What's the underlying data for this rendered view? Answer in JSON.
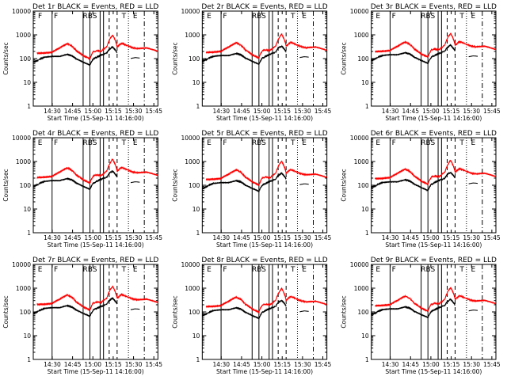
{
  "figure": {
    "type": "3x3 grid of detector light curves",
    "colors": {
      "events": "#000000",
      "lld": "#ff0000",
      "background": "#ffffff"
    }
  },
  "chart_data": [
    {
      "type": "line",
      "title": "Det 1r BLACK = Events, RED = LLD",
      "xlabel": "Start Time (15-Sep-11 14:16:00)",
      "ylabel": "Counts/sec",
      "y_scale": "log",
      "ylim": [
        1,
        10000
      ],
      "xlim": [
        14.2667,
        14.8
      ],
      "x_tick_labels": [
        "14:30",
        "14:45",
        "15:00",
        "15:15",
        "15:30",
        "15:45"
      ],
      "y_tick_labels": [
        "1",
        "10",
        "100",
        "1000",
        "10000"
      ],
      "marker_labels": [
        "F",
        "F",
        "RBS",
        "T",
        "E"
      ],
      "series": [
        {
          "name": "LLD",
          "color": "#ff0000"
        },
        {
          "name": "Events",
          "color": "#000000"
        }
      ]
    },
    {
      "type": "line",
      "title": "Det 2r BLACK = Events, RED = LLD",
      "xlabel": "Start Time (15-Sep-11 14:16:00)",
      "ylabel": "Counts/sec",
      "y_scale": "log",
      "ylim": [
        1,
        10000
      ],
      "xlim": [
        14.2667,
        14.8
      ],
      "x_tick_labels": [
        "14:30",
        "14:45",
        "15:00",
        "15:15",
        "15:30",
        "15:45"
      ],
      "y_tick_labels": [
        "1",
        "10",
        "100",
        "1000",
        "10000"
      ],
      "marker_labels": [
        "E",
        "F",
        "RBS",
        "T",
        "E"
      ],
      "series": [
        {
          "name": "LLD",
          "color": "#ff0000"
        },
        {
          "name": "Events",
          "color": "#000000"
        }
      ]
    },
    {
      "type": "line",
      "title": "Det 3r BLACK = Events, RED = LLD",
      "xlabel": "Start Time (15-Sep-11 14:16:00)",
      "ylabel": "Counts/sec",
      "y_scale": "log",
      "ylim": [
        1,
        10000
      ],
      "xlim": [
        14.2667,
        14.8
      ],
      "x_tick_labels": [
        "14:30",
        "14:45",
        "15:00",
        "15:15",
        "15:30",
        "15:45"
      ],
      "y_tick_labels": [
        "1",
        "10",
        "100",
        "1000",
        "10000"
      ],
      "marker_labels": [
        "E",
        "F",
        "RBS",
        "T",
        "E"
      ],
      "series": [
        {
          "name": "LLD",
          "color": "#ff0000"
        },
        {
          "name": "Events",
          "color": "#000000"
        }
      ]
    },
    {
      "type": "line",
      "title": "Det 4r BLACK = Events, RED = LLD",
      "xlabel": "Start Time (15-Sep-11 14:16:00)",
      "ylabel": "Counts/sec",
      "y_scale": "log",
      "ylim": [
        1,
        10000
      ],
      "xlim": [
        14.2667,
        14.8
      ],
      "x_tick_labels": [
        "14:30",
        "14:45",
        "15:00",
        "15:15",
        "15:30",
        "15:45"
      ],
      "y_tick_labels": [
        "1",
        "10",
        "100",
        "1000",
        "10000"
      ],
      "marker_labels": [
        "E",
        "F",
        "RBS",
        "T",
        "E"
      ],
      "series": [
        {
          "name": "LLD",
          "color": "#ff0000"
        },
        {
          "name": "Events",
          "color": "#000000"
        }
      ]
    },
    {
      "type": "line",
      "title": "Det 5r BLACK = Events, RED = LLD",
      "xlabel": "Start Time (15-Sep-11 14:16:00)",
      "ylabel": "Counts/sec",
      "y_scale": "log",
      "ylim": [
        1,
        10000
      ],
      "xlim": [
        14.2667,
        14.8
      ],
      "x_tick_labels": [
        "14:30",
        "14:45",
        "15:00",
        "15:15",
        "15:30",
        "15:45"
      ],
      "y_tick_labels": [
        "1",
        "10",
        "100",
        "1000",
        "10000"
      ],
      "marker_labels": [
        "E",
        "F",
        "RBS",
        "T",
        "E"
      ],
      "series": [
        {
          "name": "LLD",
          "color": "#ff0000"
        },
        {
          "name": "Events",
          "color": "#000000"
        }
      ]
    },
    {
      "type": "line",
      "title": "Det 6r BLACK = Events, RED = LLD",
      "xlabel": "Start Time (15-Sep-11 14:16:00)",
      "ylabel": "Counts/sec",
      "y_scale": "log",
      "ylim": [
        1,
        10000
      ],
      "xlim": [
        14.2667,
        14.8
      ],
      "x_tick_labels": [
        "14:30",
        "14:45",
        "15:00",
        "15:15",
        "15:30",
        "15:45"
      ],
      "y_tick_labels": [
        "1",
        "10",
        "100",
        "1000",
        "10000"
      ],
      "marker_labels": [
        "E",
        "F",
        "RBS",
        "T",
        "E"
      ],
      "series": [
        {
          "name": "LLD",
          "color": "#ff0000"
        },
        {
          "name": "Events",
          "color": "#000000"
        }
      ]
    },
    {
      "type": "line",
      "title": "Det 7r BLACK = Events, RED = LLD",
      "xlabel": "Start Time (15-Sep-11 14:16:00)",
      "ylabel": "Counts/sec",
      "y_scale": "log",
      "ylim": [
        1,
        10000
      ],
      "xlim": [
        14.2667,
        14.8
      ],
      "x_tick_labels": [
        "14:30",
        "14:45",
        "15:00",
        "15:15",
        "15:30",
        "15:45"
      ],
      "y_tick_labels": [
        "1",
        "10",
        "100",
        "1000",
        "10000"
      ],
      "marker_labels": [
        "E",
        "F",
        "RBS",
        "T",
        "E"
      ],
      "series": [
        {
          "name": "LLD",
          "color": "#ff0000"
        },
        {
          "name": "Events",
          "color": "#000000"
        }
      ]
    },
    {
      "type": "line",
      "title": "Det 8r BLACK = Events, RED = LLD",
      "xlabel": "Start Time (15-Sep-11 14:16:00)",
      "ylabel": "Counts/sec",
      "y_scale": "log",
      "ylim": [
        1,
        10000
      ],
      "xlim": [
        14.2667,
        14.8
      ],
      "x_tick_labels": [
        "14:30",
        "14:45",
        "15:00",
        "15:15",
        "15:30",
        "15:45"
      ],
      "y_tick_labels": [
        "1",
        "10",
        "100",
        "1000",
        "10000"
      ],
      "marker_labels": [
        "E",
        "F",
        "RBS",
        "T",
        "E"
      ],
      "series": [
        {
          "name": "LLD",
          "color": "#ff0000"
        },
        {
          "name": "Events",
          "color": "#000000"
        }
      ]
    },
    {
      "type": "line",
      "title": "Det 9r BLACK = Events, RED = LLD",
      "xlabel": "Start Time (15-Sep-11 14:16:00)",
      "ylabel": "Counts/sec",
      "y_scale": "log",
      "ylim": [
        1,
        10000
      ],
      "xlim": [
        14.2667,
        14.8
      ],
      "x_tick_labels": [
        "14:30",
        "14:45",
        "15:00",
        "15:15",
        "15:30",
        "15:45"
      ],
      "y_tick_labels": [
        "1",
        "10",
        "100",
        "1000",
        "10000"
      ],
      "marker_labels": [
        "E",
        "F",
        "RBS",
        "T",
        "E"
      ],
      "series": [
        {
          "name": "LLD",
          "color": "#ff0000"
        },
        {
          "name": "Events",
          "color": "#000000"
        }
      ]
    }
  ],
  "lld_curve": {
    "x": [
      14.267,
      14.3,
      14.333,
      14.367,
      14.4,
      14.42,
      14.44,
      14.47,
      14.5,
      14.515,
      14.53,
      14.55,
      14.565,
      14.575,
      14.585,
      14.6,
      14.62,
      14.64,
      14.66,
      14.67,
      14.69,
      14.71,
      14.75,
      14.8
    ],
    "y": [
      190,
      195,
      210,
      320,
      480,
      380,
      240,
      150,
      110,
      220,
      240,
      230,
      300,
      360,
      650,
      1100,
      350,
      500,
      420,
      380,
      320,
      300,
      320,
      230
    ]
  },
  "events_curve": {
    "x": [
      14.25,
      14.27,
      14.28,
      14.3,
      14.333,
      14.367,
      14.4,
      14.42,
      14.44,
      14.47,
      14.5,
      14.515,
      14.53,
      14.55,
      14.565,
      14.575,
      14.585,
      14.6,
      14.62
    ],
    "y": [
      80,
      95,
      110,
      130,
      140,
      140,
      170,
      150,
      110,
      80,
      60,
      110,
      130,
      160,
      180,
      200,
      280,
      350,
      200
    ]
  },
  "gap_segment": {
    "x": [
      14.68,
      14.7,
      14.72
    ],
    "y": [
      115,
      125,
      120
    ]
  },
  "event_markers": {
    "solid": [
      14.333,
      14.47,
      14.5,
      14.545,
      14.56
    ],
    "dashed": [
      14.585,
      14.62
    ],
    "dotted": [
      14.67
    ],
    "dash_dot": [
      14.74
    ]
  },
  "marker_label_positions": [
    14.28,
    14.35,
    14.5,
    14.65,
    14.7
  ]
}
